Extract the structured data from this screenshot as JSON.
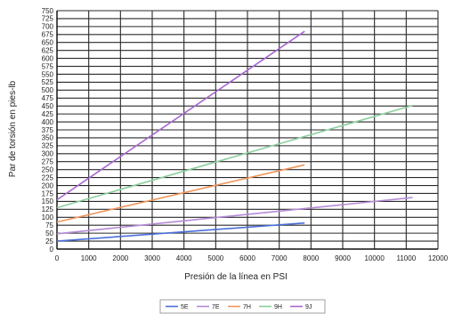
{
  "chart_data": {
    "type": "line",
    "xlabel": "Presión de la línea en PSI",
    "ylabel": "Par de torsión en pies-lb",
    "xlim": [
      0,
      12000
    ],
    "ylim": [
      0,
      750
    ],
    "xticks": [
      0,
      1000,
      2000,
      3000,
      4000,
      5000,
      6000,
      7000,
      8000,
      9000,
      10000,
      11000,
      12000
    ],
    "yticks": [
      0,
      25,
      50,
      75,
      100,
      125,
      150,
      175,
      200,
      225,
      250,
      275,
      300,
      325,
      350,
      375,
      400,
      425,
      450,
      475,
      500,
      525,
      550,
      575,
      600,
      625,
      650,
      675,
      700,
      725,
      750
    ],
    "grid": true,
    "legend_position": "bottom-center",
    "series": [
      {
        "name": "5E",
        "color": "#4a6fd8",
        "x": [
          0,
          7800
        ],
        "y": [
          25,
          82
        ]
      },
      {
        "name": "7E",
        "color": "#b48ad6",
        "x": [
          0,
          11200
        ],
        "y": [
          48,
          162
        ]
      },
      {
        "name": "7H",
        "color": "#f0955a",
        "x": [
          0,
          7800
        ],
        "y": [
          85,
          265
        ]
      },
      {
        "name": "9H",
        "color": "#8ccf9e",
        "x": [
          0,
          11200
        ],
        "y": [
          130,
          452
        ]
      },
      {
        "name": "9J",
        "color": "#a868d0",
        "x": [
          0,
          7800
        ],
        "y": [
          155,
          685
        ]
      }
    ]
  }
}
